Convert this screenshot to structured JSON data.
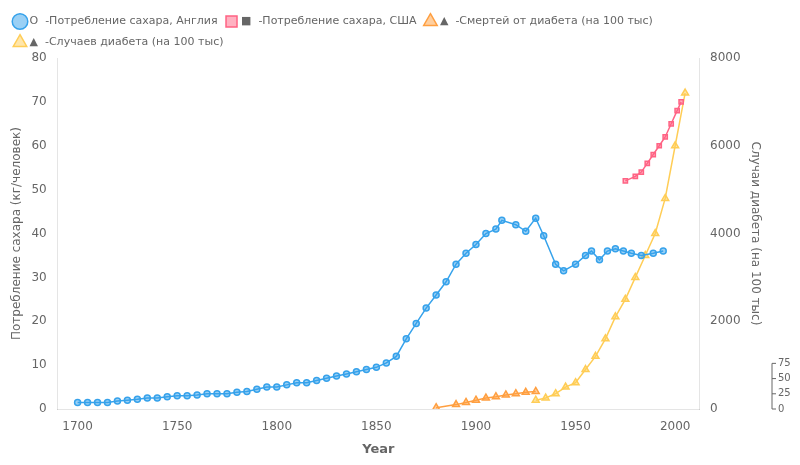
{
  "chart_data": {
    "type": "line",
    "xlabel": "Year",
    "ylabel": "Потребление сахара (кг/человек)",
    "y2label": "Случаи диабета (на 100 тыс)",
    "series": [
      {
        "name": "O  -Потребление сахара, Англия",
        "marker": "circle",
        "x": [
          1700,
          1705,
          1710,
          1715,
          1720,
          1725,
          1730,
          1735,
          1740,
          1745,
          1750,
          1755,
          1760,
          1765,
          1770,
          1775,
          1780,
          1785,
          1790,
          1795,
          1800,
          1805,
          1810,
          1815,
          1820,
          1825,
          1830,
          1835,
          1840,
          1845,
          1850,
          1855,
          1860,
          1865,
          1870,
          1875,
          1880,
          1885,
          1890,
          1895,
          1900,
          1905,
          1910,
          1913,
          1920,
          1925,
          1930,
          1934,
          1940,
          1944,
          1950,
          1955,
          1958,
          1962,
          1966,
          1970,
          1974,
          1978,
          1983,
          1989,
          1994
        ],
        "values": [
          1.5,
          1.5,
          1.5,
          1.5,
          1.8,
          2.0,
          2.2,
          2.5,
          2.5,
          2.8,
          3.0,
          3.0,
          3.2,
          3.5,
          3.5,
          3.5,
          3.8,
          4.0,
          4.5,
          5.0,
          5.0,
          5.5,
          6.0,
          6.0,
          6.5,
          7.0,
          7.5,
          8.0,
          8.5,
          9.0,
          9.5,
          10.5,
          12.0,
          16.0,
          19.5,
          23.0,
          26.0,
          29.0,
          33.0,
          35.5,
          37.5,
          40.0,
          41.0,
          43.0,
          42.0,
          40.5,
          43.5,
          39.5,
          33.0,
          31.5,
          33.0,
          35.0,
          36.0,
          34.0,
          36.0,
          36.5,
          36.0,
          35.5,
          35.0,
          35.5,
          36.0
        ]
      },
      {
        "name": "■  -Потребление сахара, США",
        "marker": "square",
        "x": [
          1975,
          1980,
          1983,
          1986,
          1989,
          1992,
          1995,
          1998,
          2001,
          2003
        ],
        "values": [
          52,
          53,
          54,
          56,
          58,
          60,
          62,
          65,
          68,
          70
        ]
      },
      {
        "name": "▲  -Смертей от диабета (на 100 тыс)",
        "marker": "triangle",
        "x": [
          1880,
          1890,
          1895,
          1900,
          1905,
          1910,
          1915,
          1920,
          1925,
          1930
        ],
        "values": [
          0.3,
          1.0,
          1.5,
          2.0,
          2.5,
          2.8,
          3.2,
          3.5,
          3.8,
          4.0
        ]
      },
      {
        "name": "▲  -Случаев диабета (на 100 тыс)",
        "marker": "triangle",
        "axis": "y2",
        "x": [
          1930,
          1935,
          1940,
          1945,
          1950,
          1955,
          1960,
          1965,
          1970,
          1975,
          1980,
          1985,
          1990,
          1995,
          2000,
          2005
        ],
        "values": [
          200,
          250,
          350,
          500,
          600,
          900,
          1200,
          1600,
          2100,
          2500,
          3000,
          3500,
          4000,
          4800,
          6000,
          7200
        ]
      }
    ],
    "xlim": [
      1690,
      2012
    ],
    "xticks": [
      1700,
      1750,
      1800,
      1850,
      1900,
      1950,
      2000
    ],
    "ylim": [
      0,
      80
    ],
    "yticks": [
      0,
      10,
      20,
      30,
      40,
      50,
      60,
      70,
      80
    ],
    "y2lim": [
      0,
      8000
    ],
    "y2ticks": [
      0,
      2000,
      4000,
      6000,
      8000
    ],
    "grid": false,
    "legend": "upper left",
    "annotations": [
      "0",
      "25",
      "50",
      "75"
    ]
  }
}
